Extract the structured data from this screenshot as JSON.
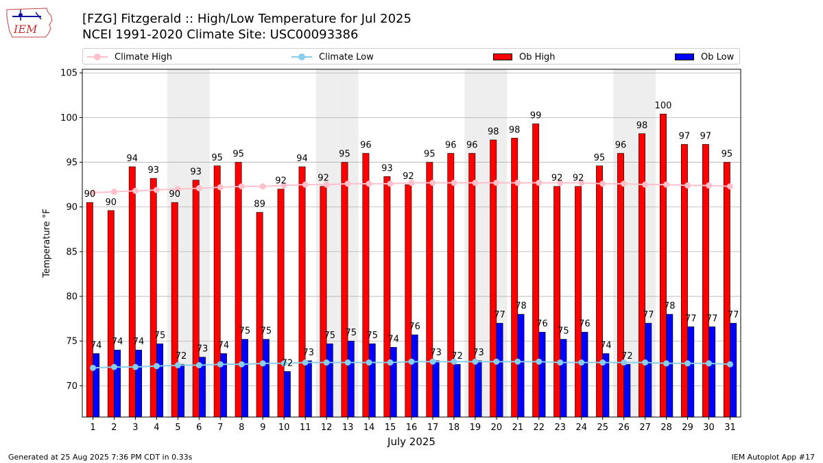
{
  "header": {
    "title_line1": "[FZG] Fitzgerald :: High/Low Temperature for Jul 2025",
    "title_line2": "NCEI 1991-2020 Climate Site: USC00093386",
    "logo_text": "IEM"
  },
  "legend": {
    "climate_high": "Climate High",
    "climate_low": "Climate Low",
    "ob_high": "Ob High",
    "ob_low": "Ob Low"
  },
  "colors": {
    "ob_high": "#ff0000",
    "ob_low": "#0000ff",
    "climate_high": "#ffc0cb",
    "climate_low": "#87ceeb",
    "weekend_shade": "#eeeeee",
    "grid": "#b0b0b0"
  },
  "footer": {
    "generated": "Generated at 25 Aug 2025 7:36 PM CDT in 0.33s",
    "app": "IEM Autoplot App #17"
  },
  "chart_data": {
    "type": "bar",
    "xlabel": "July 2025",
    "ylabel": "Temperature °F",
    "ylim": [
      66.5,
      105.4
    ],
    "yticks": [
      70,
      75,
      80,
      85,
      90,
      95,
      100,
      105
    ],
    "grid": true,
    "legend_placement": "top",
    "categories": [
      "1",
      "2",
      "3",
      "4",
      "5",
      "6",
      "7",
      "8",
      "9",
      "10",
      "11",
      "12",
      "13",
      "14",
      "15",
      "16",
      "17",
      "18",
      "19",
      "20",
      "21",
      "22",
      "23",
      "24",
      "25",
      "26",
      "27",
      "28",
      "29",
      "30",
      "31"
    ],
    "shaded_days": [
      5,
      6,
      12,
      13,
      19,
      20,
      26,
      27
    ],
    "series": [
      {
        "name": "Ob High",
        "kind": "bar",
        "values": [
          90.5,
          89.6,
          94.5,
          93.2,
          90.5,
          93.0,
          94.6,
          95.0,
          89.4,
          92.0,
          94.5,
          92.3,
          95.0,
          96.0,
          93.4,
          92.5,
          95.0,
          96.0,
          96.0,
          97.5,
          97.7,
          99.3,
          92.3,
          92.3,
          94.6,
          96.0,
          98.2,
          100.4,
          97.0,
          97.0,
          95.0
        ],
        "labels": [
          "90",
          "90",
          "94",
          "93",
          "90",
          "93",
          "95",
          "95",
          "89",
          "92",
          "94",
          "92",
          "95",
          "96",
          "93",
          "92",
          "95",
          "96",
          "96",
          "98",
          "98",
          "99",
          "92",
          "92",
          "95",
          "96",
          "98",
          "100",
          "97",
          "97",
          "95"
        ]
      },
      {
        "name": "Ob Low",
        "kind": "bar",
        "values": [
          73.6,
          74.0,
          74.0,
          74.7,
          72.4,
          73.2,
          73.6,
          75.2,
          75.2,
          71.6,
          72.8,
          74.7,
          75.0,
          74.7,
          74.3,
          75.7,
          72.8,
          72.4,
          72.8,
          77.0,
          78.0,
          76.0,
          75.2,
          76.0,
          73.6,
          72.4,
          77.0,
          78.0,
          76.6,
          76.6,
          77.0
        ],
        "labels": [
          "74",
          "74",
          "74",
          "75",
          "72",
          "73",
          "74",
          "75",
          "75",
          "72",
          "73",
          "75",
          "75",
          "75",
          "74",
          "76",
          "73",
          "72",
          "73",
          "77",
          "78",
          "76",
          "75",
          "76",
          "74",
          "72",
          "77",
          "78",
          "77",
          "77",
          "77"
        ]
      },
      {
        "name": "Climate High",
        "kind": "line",
        "values": [
          91.6,
          91.7,
          91.8,
          91.9,
          92.0,
          92.1,
          92.2,
          92.3,
          92.3,
          92.4,
          92.5,
          92.5,
          92.6,
          92.6,
          92.6,
          92.7,
          92.7,
          92.7,
          92.7,
          92.7,
          92.7,
          92.7,
          92.7,
          92.7,
          92.6,
          92.6,
          92.5,
          92.5,
          92.4,
          92.4,
          92.3
        ]
      },
      {
        "name": "Climate Low",
        "kind": "line",
        "values": [
          72.0,
          72.1,
          72.1,
          72.2,
          72.3,
          72.3,
          72.4,
          72.4,
          72.5,
          72.5,
          72.6,
          72.6,
          72.6,
          72.6,
          72.6,
          72.7,
          72.7,
          72.7,
          72.7,
          72.7,
          72.7,
          72.7,
          72.6,
          72.6,
          72.6,
          72.6,
          72.6,
          72.5,
          72.5,
          72.5,
          72.4
        ]
      }
    ]
  }
}
